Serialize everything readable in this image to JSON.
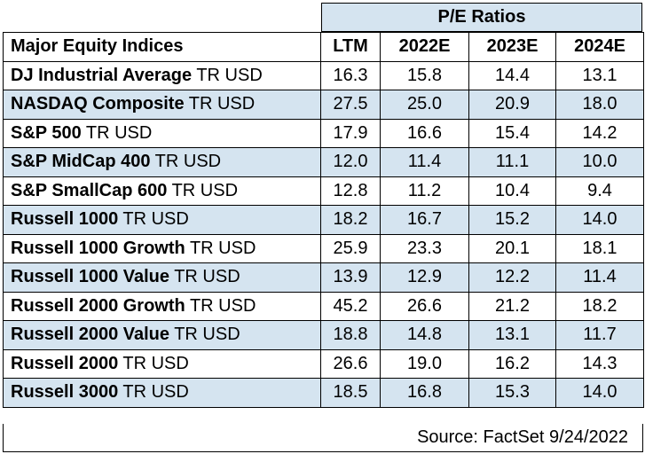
{
  "banner": {
    "title": "P/E Ratios"
  },
  "columns": [
    "Major Equity Indices",
    "LTM",
    "2022E",
    "2023E",
    "2024E"
  ],
  "rows": [
    {
      "bold": "DJ Industrial Average",
      "suffix": " TR USD",
      "vals": [
        "16.3",
        "15.8",
        "14.4",
        "13.1"
      ]
    },
    {
      "bold": "NASDAQ Composite",
      "suffix": " TR USD",
      "vals": [
        "27.5",
        "25.0",
        "20.9",
        "18.0"
      ]
    },
    {
      "bold": "S&P 500",
      "suffix": " TR USD",
      "vals": [
        "17.9",
        "16.6",
        "15.4",
        "14.2"
      ]
    },
    {
      "bold": "S&P MidCap 400",
      "suffix": " TR USD",
      "vals": [
        "12.0",
        "11.4",
        "11.1",
        "10.0"
      ]
    },
    {
      "bold": "S&P SmallCap 600",
      "suffix": " TR USD",
      "vals": [
        "12.8",
        "11.2",
        "10.4",
        "9.4"
      ]
    },
    {
      "bold": "Russell 1000",
      "suffix": " TR USD",
      "vals": [
        "18.2",
        "16.7",
        "15.2",
        "14.0"
      ]
    },
    {
      "bold": "Russell 1000 Growth",
      "suffix": " TR USD",
      "vals": [
        "25.9",
        "23.3",
        "20.1",
        "18.1"
      ]
    },
    {
      "bold": "Russell 1000 Value",
      "suffix": " TR USD",
      "vals": [
        "13.9",
        "12.9",
        "12.2",
        "11.4"
      ]
    },
    {
      "bold": "Russell 2000 Growth",
      "suffix": " TR USD",
      "vals": [
        "45.2",
        "26.6",
        "21.2",
        "18.2"
      ]
    },
    {
      "bold": "Russell 2000 Value",
      "suffix": " TR USD",
      "vals": [
        "18.8",
        "14.8",
        "13.1",
        "11.7"
      ]
    },
    {
      "bold": "Russell 2000",
      "suffix": " TR USD",
      "vals": [
        "26.6",
        "19.0",
        "16.2",
        "14.3"
      ]
    },
    {
      "bold": "Russell 3000",
      "suffix": " TR USD",
      "vals": [
        "18.5",
        "16.8",
        "15.3",
        "14.0"
      ]
    }
  ],
  "source": "Source: FactSet 9/24/2022",
  "colors": {
    "shade": "#d5e4f0",
    "border": "#000000"
  }
}
